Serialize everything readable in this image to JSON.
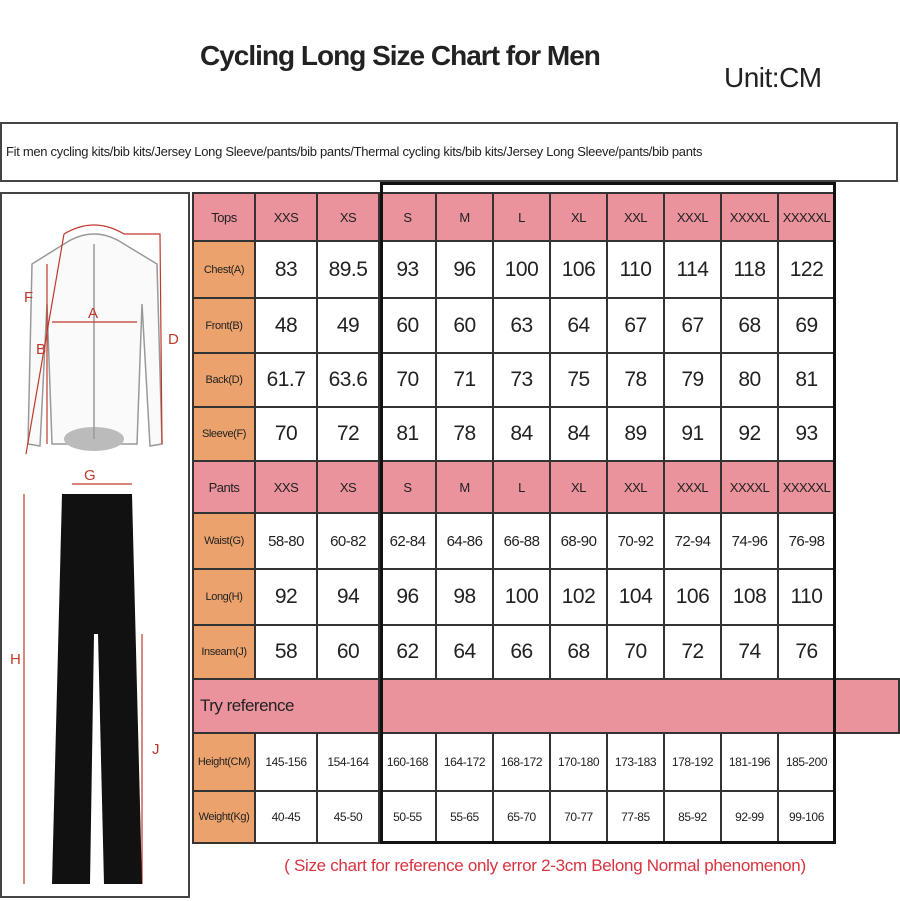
{
  "title": "Cycling Long Size Chart for Men",
  "unit": "Unit:CM",
  "fit_text": "Fit men cycling kits/bib kits/Jersey Long Sleeve/pants/bib pants/Thermal cycling kits/bib kits/Jersey Long Sleeve/pants/bib pants",
  "colors": {
    "header": "#ea939c",
    "label": "#eba26c",
    "note": "#d9333f"
  },
  "sizes": [
    "XXS",
    "XS",
    "S",
    "M",
    "L",
    "XL",
    "XXL",
    "XXXL",
    "XXXXL",
    "XXXXXL"
  ],
  "tops": {
    "header": "Tops",
    "rows": [
      {
        "label": "Chest(A)",
        "values": [
          "83",
          "89.5",
          "93",
          "96",
          "100",
          "106",
          "110",
          "114",
          "118",
          "122"
        ]
      },
      {
        "label": "Front(B)",
        "values": [
          "48",
          "49",
          "60",
          "60",
          "63",
          "64",
          "67",
          "67",
          "68",
          "69"
        ]
      },
      {
        "label": "Back(D)",
        "values": [
          "61.7",
          "63.6",
          "70",
          "71",
          "73",
          "75",
          "78",
          "79",
          "80",
          "81"
        ]
      },
      {
        "label": "Sleeve(F)",
        "values": [
          "70",
          "72",
          "81",
          "78",
          "84",
          "84",
          "89",
          "91",
          "92",
          "93"
        ]
      }
    ]
  },
  "pants": {
    "header": "Pants",
    "rows": [
      {
        "label": "Waist(G)",
        "values": [
          "58-80",
          "60-82",
          "62-84",
          "64-86",
          "66-88",
          "68-90",
          "70-92",
          "72-94",
          "74-96",
          "76-98"
        ]
      },
      {
        "label": "Long(H)",
        "values": [
          "92",
          "94",
          "96",
          "98",
          "100",
          "102",
          "104",
          "106",
          "108",
          "110"
        ]
      },
      {
        "label": "Inseam(J)",
        "values": [
          "58",
          "60",
          "62",
          "64",
          "66",
          "68",
          "70",
          "72",
          "74",
          "76"
        ]
      }
    ]
  },
  "reference": {
    "header": "Try reference",
    "rows": [
      {
        "label": "Height(CM)",
        "values": [
          "145-156",
          "154-164",
          "160-168",
          "164-172",
          "168-172",
          "170-180",
          "173-183",
          "178-192",
          "181-196",
          "185-200"
        ]
      },
      {
        "label": "Weight(Kg)",
        "values": [
          "40-45",
          "45-50",
          "50-55",
          "55-65",
          "65-70",
          "70-77",
          "77-85",
          "85-92",
          "92-99",
          "99-106"
        ]
      }
    ]
  },
  "diagram_labels": {
    "a": "A",
    "b": "B",
    "d": "D",
    "f": "F",
    "g": "G",
    "h": "H",
    "j": "J"
  },
  "note": "( Size chart for reference only  error 2-3cm  Belong Normal phenomenon)"
}
